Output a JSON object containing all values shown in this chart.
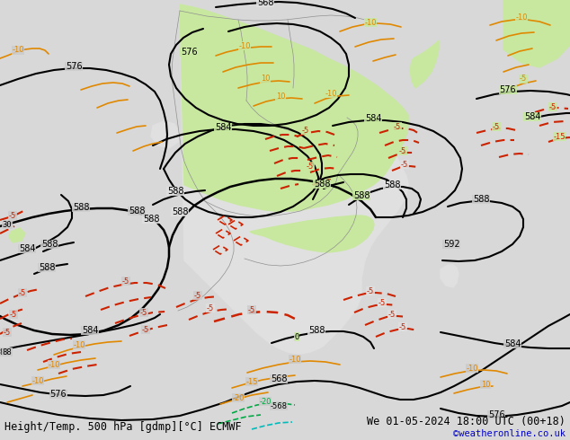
{
  "title_left": "Height/Temp. 500 hPa [gdmp][°C] ECMWF",
  "title_right": "We 01-05-2024 18:00 UTC (00+18)",
  "credit": "©weatheronline.co.uk",
  "bg_light_gray": "#d8d8d8",
  "land_green": "#c8e8a0",
  "land_gray": "#e0e0e0",
  "ocean_gray": "#cccccc",
  "c_black": "#000000",
  "c_orange": "#e08800",
  "c_red": "#cc2200",
  "c_green": "#00aa44",
  "c_cyan": "#00bbbb",
  "c_blue": "#0000cc",
  "label_fs": 7,
  "title_fs": 8.5,
  "credit_fs": 7.5
}
